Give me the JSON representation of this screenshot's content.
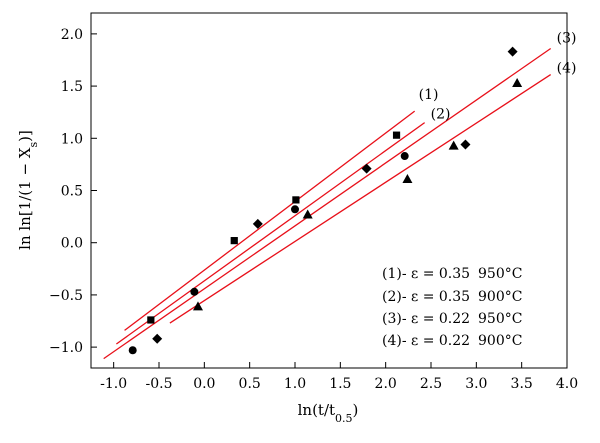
{
  "chart_data": {
    "type": "scatter",
    "xlabel": "ln(t/t",
    "xlabel_sub": "0.5",
    "xlabel_end": ")",
    "ylabel": "ln ln[1/(1 − X",
    "ylabel_sub": "s",
    "ylabel_end": ")]",
    "xlim": [
      -1.25,
      4.0
    ],
    "ylim": [
      -1.2,
      2.2
    ],
    "x_ticks": [
      -1.0,
      -0.5,
      0.0,
      0.5,
      1.0,
      1.5,
      2.0,
      2.5,
      3.0,
      3.5,
      4.0
    ],
    "x_tick_labels": [
      "-1.0",
      "-0.5",
      "0.0",
      "0.5",
      "1.0",
      "1.5",
      "2.0",
      "2.5",
      "3.0",
      "3.5",
      "4.0"
    ],
    "y_ticks": [
      -1.0,
      -0.5,
      0.0,
      0.5,
      1.0,
      1.5,
      2.0
    ],
    "y_tick_labels": [
      "−1.0",
      "−0.5",
      "0.0",
      "0.5",
      "1.0",
      "1.5",
      "2.0"
    ],
    "grid": false,
    "legend_position": "bottom-right",
    "line_color": "#e8101a",
    "marker_color": "#000000",
    "series": [
      {
        "name": "(1)",
        "tag": "(1)",
        "legend": {
          "label": "(1)- ε = 0.35",
          "temp": "950°C"
        },
        "marker": "square",
        "points": [
          [
            -0.59,
            -0.74
          ],
          [
            0.33,
            0.02
          ],
          [
            1.01,
            0.41
          ],
          [
            2.12,
            1.03
          ]
        ],
        "fit": [
          [
            -0.88,
            -0.84
          ],
          [
            2.32,
            1.26
          ]
        ]
      },
      {
        "name": "(2)",
        "tag": "(2)",
        "legend": {
          "label": "(2)- ε = 0.35",
          "temp": "900°C"
        },
        "marker": "circle",
        "points": [
          [
            -0.79,
            -1.03
          ],
          [
            -0.11,
            -0.47
          ],
          [
            1.0,
            0.32
          ],
          [
            2.21,
            0.83
          ]
        ],
        "fit": [
          [
            -0.97,
            -0.97
          ],
          [
            2.43,
            1.15
          ]
        ]
      },
      {
        "name": "(3)",
        "tag": "(3)",
        "legend": {
          "label": "(3)- ε = 0.22",
          "temp": "950°C"
        },
        "marker": "diamond",
        "points": [
          [
            -0.52,
            -0.92
          ],
          [
            0.59,
            0.18
          ],
          [
            1.79,
            0.71
          ],
          [
            2.88,
            0.94
          ],
          [
            3.4,
            1.83
          ]
        ],
        "fit": [
          [
            -1.11,
            -1.11
          ],
          [
            3.82,
            1.86
          ]
        ]
      },
      {
        "name": "(4)",
        "tag": "(4)",
        "legend": {
          "label": "(4)- ε = 0.22",
          "temp": "900°C"
        },
        "marker": "triangle",
        "points": [
          [
            -0.07,
            -0.61
          ],
          [
            1.14,
            0.27
          ],
          [
            2.24,
            0.61
          ],
          [
            2.75,
            0.93
          ],
          [
            3.45,
            1.53
          ]
        ],
        "fit": [
          [
            -0.38,
            -0.77
          ],
          [
            3.82,
            1.61
          ]
        ]
      }
    ]
  }
}
